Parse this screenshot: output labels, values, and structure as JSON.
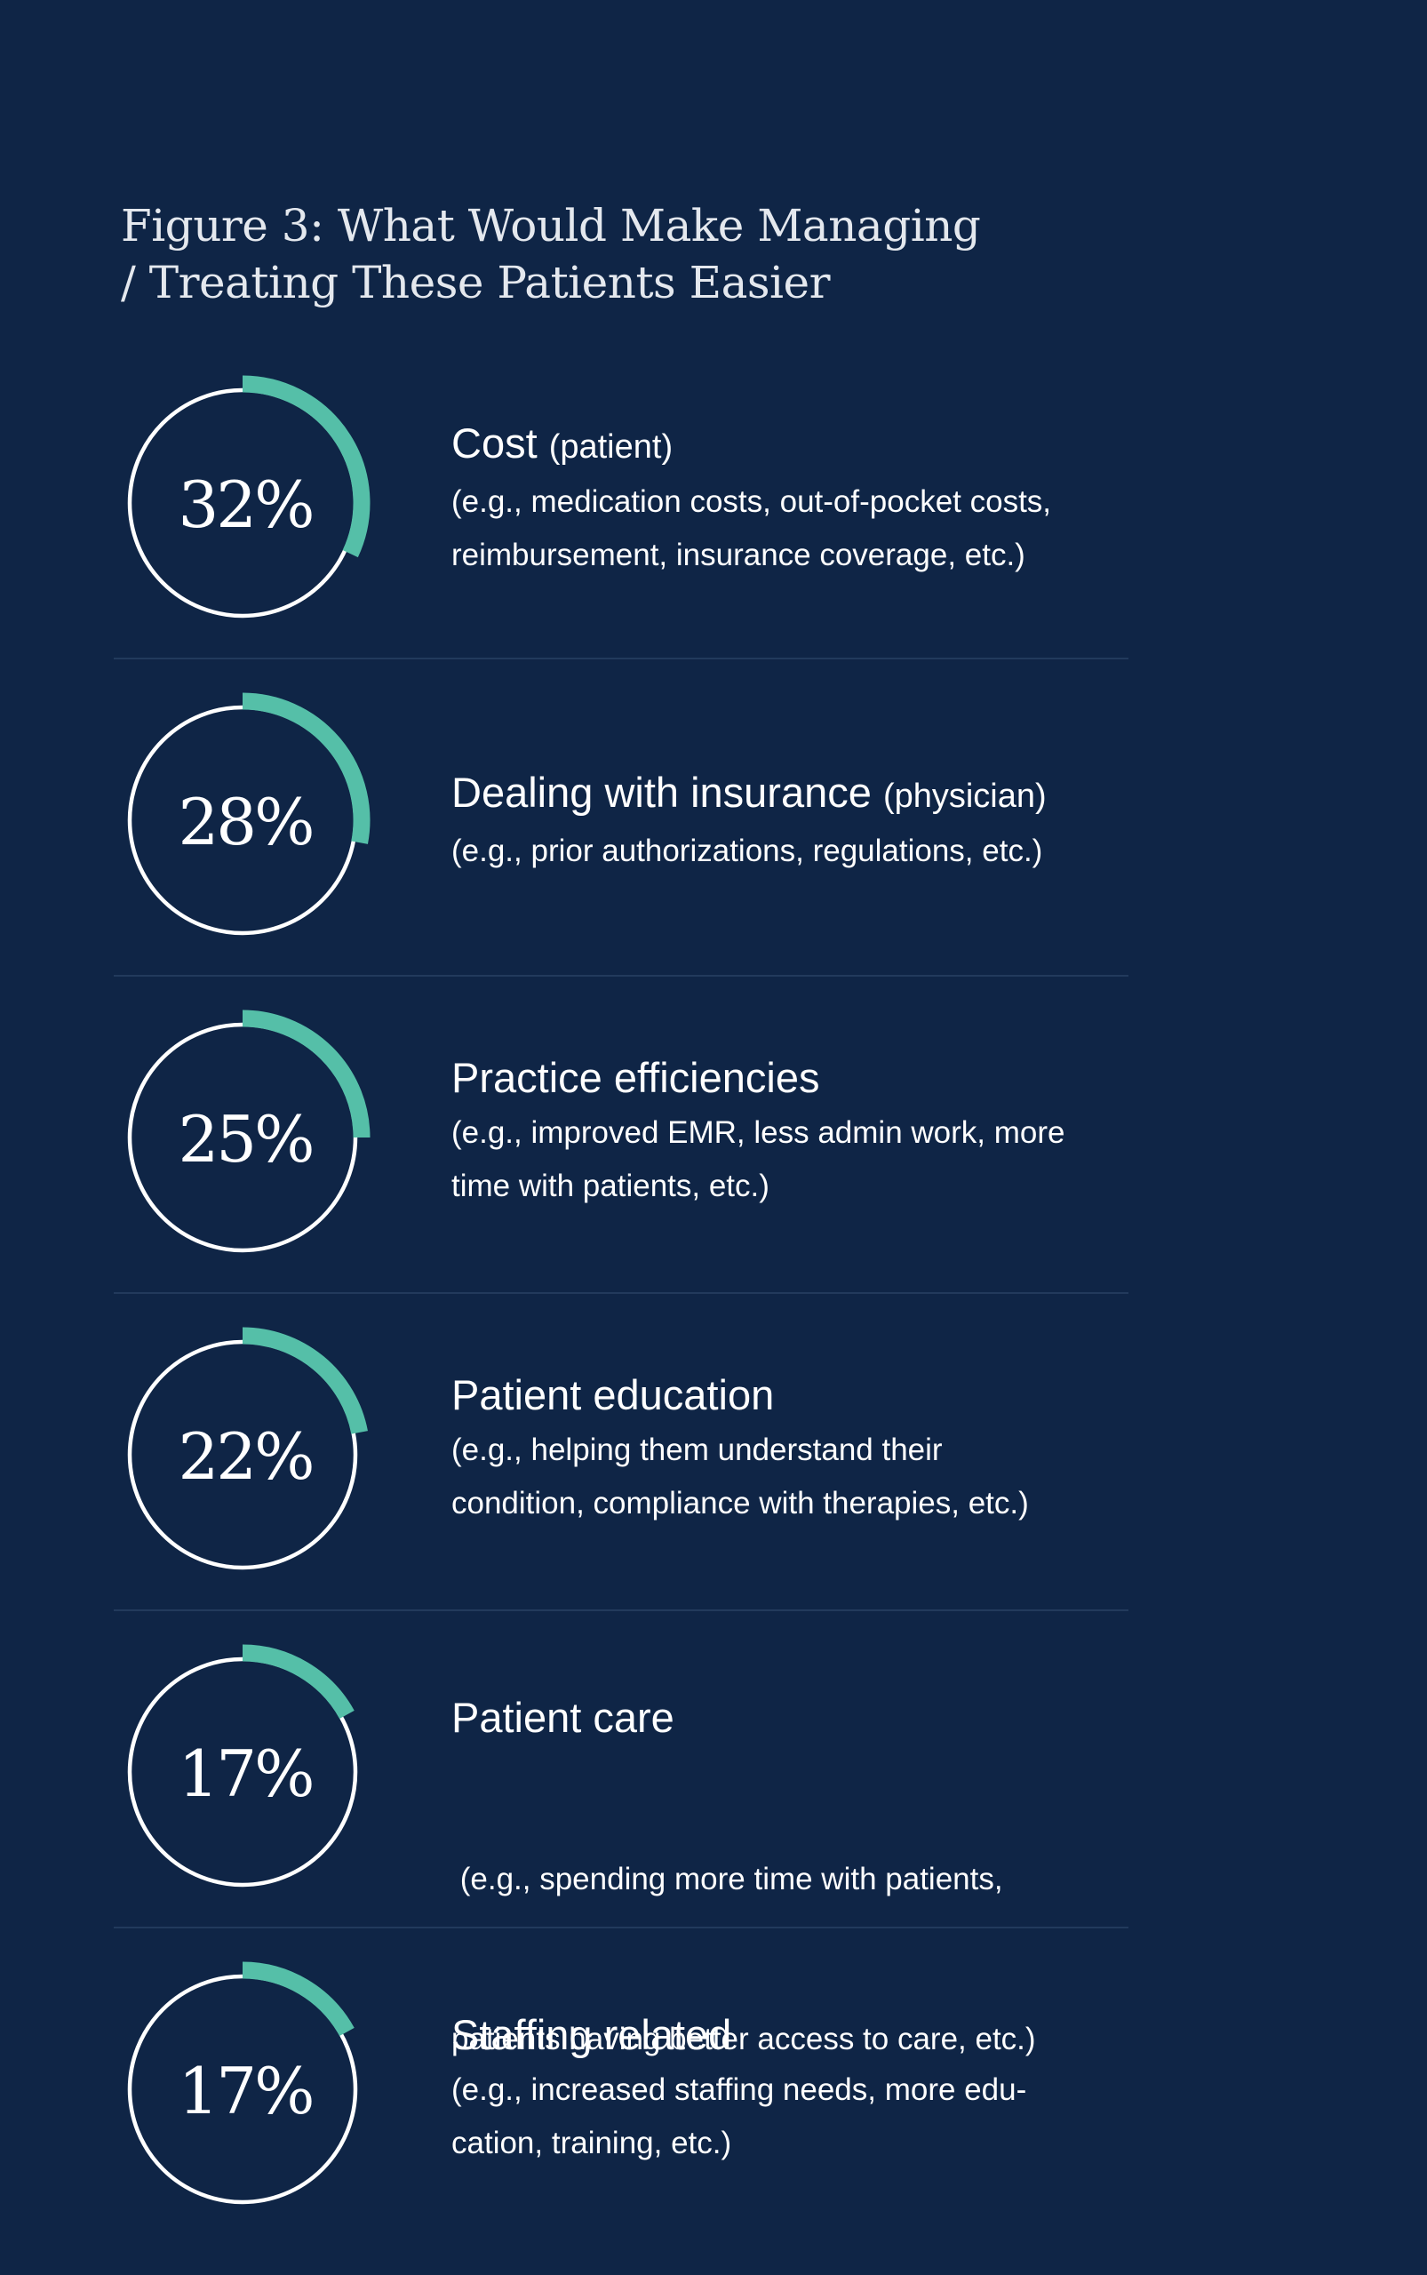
{
  "title_lines": [
    "Figure 3: What Would Make Managing",
    "/ Treating These Patients Easier"
  ],
  "colors": {
    "background": "#0f2546",
    "ring": "#ffffff",
    "arc": "#55bfa8",
    "divider": "#223a5c"
  },
  "chart_data": {
    "type": "radial-progress",
    "title": "Figure 3: What Would Make Managing / Treating These Patients Easier",
    "unit": "%",
    "items": [
      {
        "value": 32,
        "label": "32%",
        "heading": "Cost",
        "qualifier": "(patient)",
        "desc_lines": [
          "(e.g., medication costs, out-of-pocket costs,",
          "reimbursement, insurance coverage, etc.)"
        ]
      },
      {
        "value": 28,
        "label": "28%",
        "heading": "Dealing with insurance",
        "qualifier": "(physician)",
        "desc_lines": [
          "(e.g., prior authorizations, regulations, etc.)"
        ]
      },
      {
        "value": 25,
        "label": "25%",
        "heading": "Practice efficiencies",
        "qualifier": "",
        "desc_lines": [
          "(e.g., improved EMR, less admin work, more",
          "time with patients, etc.)"
        ]
      },
      {
        "value": 22,
        "label": "22%",
        "heading": "Patient education",
        "qualifier": "",
        "desc_lines": [
          "(e.g., helping them understand their",
          "condition, compliance with therapies, etc.)"
        ]
      },
      {
        "value": 17,
        "label": "17%",
        "heading": "Patient care",
        "qualifier": "",
        "desc_lines": [
          " (e.g., spending more time with patients,",
          "patients having better access to care, etc.)"
        ]
      },
      {
        "value": 17,
        "label": "17%",
        "heading": "Staffing related",
        "qualifier": "",
        "desc_lines": [
          "(e.g., increased staffing needs, more edu-",
          "cation, training, etc.)"
        ]
      }
    ]
  }
}
